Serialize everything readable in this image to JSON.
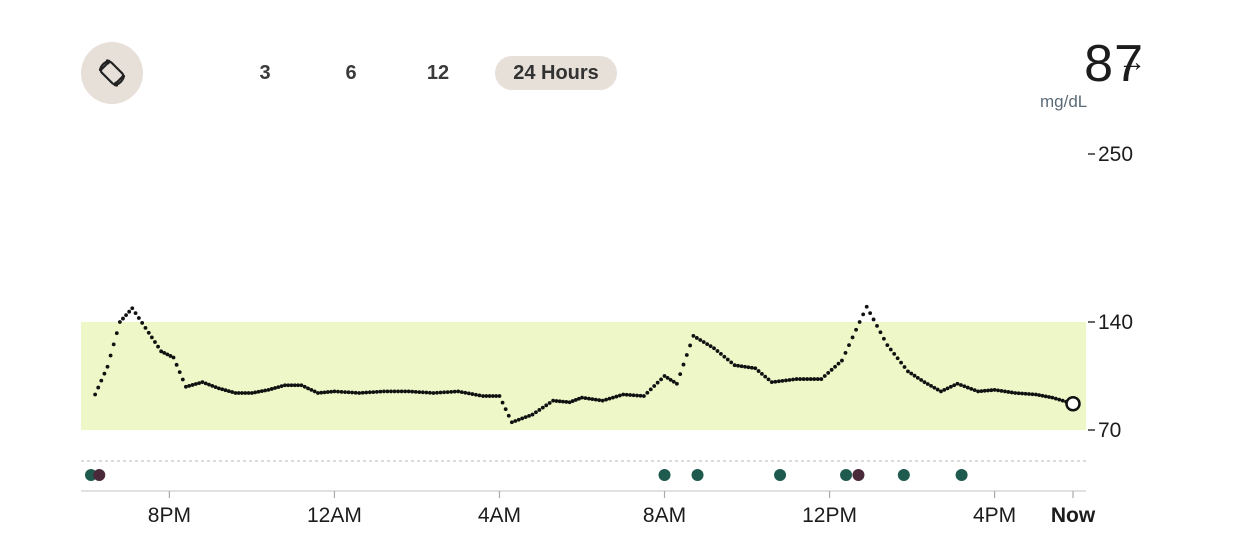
{
  "controls": {
    "rotate_icon": "rotate-screen-icon",
    "ranges": [
      "3",
      "6",
      "12",
      "24 Hours"
    ],
    "active_range": "24 Hours"
  },
  "current": {
    "value": "87",
    "unit": "mg/dL",
    "arrow": "→"
  },
  "colors": {
    "target_band": "#edf7c8",
    "rotate_bg": "#e6e0d8",
    "event_teal": "#1f5a4f",
    "event_purple": "#4a2a3a"
  },
  "chart_data": {
    "type": "scatter",
    "y_ticks": [
      {
        "label": "250",
        "value": 250
      },
      {
        "label": "140",
        "value": 140
      },
      {
        "label": "70",
        "value": 70
      }
    ],
    "target_range": [
      70,
      140
    ],
    "x_ticks": [
      {
        "label": "8PM",
        "hours": 20
      },
      {
        "label": "12AM",
        "hours": 24
      },
      {
        "label": "4AM",
        "hours": 28
      },
      {
        "label": "8AM",
        "hours": 32
      },
      {
        "label": "12PM",
        "hours": 36
      },
      {
        "label": "4PM",
        "hours": 40
      },
      {
        "label": "Now",
        "hours": 41.9
      }
    ],
    "x_range_hours": [
      18.1,
      41.9
    ],
    "y_range": [
      70,
      250
    ],
    "series_points": [
      [
        18.2,
        93
      ],
      [
        18.5,
        111
      ],
      [
        18.8,
        140
      ],
      [
        19.1,
        149
      ],
      [
        19.5,
        133
      ],
      [
        19.8,
        121
      ],
      [
        20.1,
        117
      ],
      [
        20.4,
        98
      ],
      [
        20.8,
        101
      ],
      [
        21.2,
        97
      ],
      [
        21.6,
        94
      ],
      [
        22.0,
        94
      ],
      [
        22.4,
        96
      ],
      [
        22.8,
        99
      ],
      [
        23.2,
        99
      ],
      [
        23.6,
        94
      ],
      [
        24.0,
        95
      ],
      [
        24.6,
        94
      ],
      [
        25.2,
        95
      ],
      [
        25.8,
        95
      ],
      [
        26.4,
        94
      ],
      [
        27.0,
        95
      ],
      [
        27.6,
        92
      ],
      [
        28.0,
        92
      ],
      [
        28.3,
        75
      ],
      [
        28.8,
        80
      ],
      [
        29.3,
        89
      ],
      [
        29.7,
        88
      ],
      [
        30.0,
        91
      ],
      [
        30.5,
        89
      ],
      [
        31.0,
        93
      ],
      [
        31.5,
        92
      ],
      [
        32.0,
        105
      ],
      [
        32.3,
        100
      ],
      [
        32.7,
        131
      ],
      [
        33.2,
        123
      ],
      [
        33.7,
        112
      ],
      [
        34.2,
        110
      ],
      [
        34.6,
        101
      ],
      [
        35.2,
        103
      ],
      [
        35.8,
        103
      ],
      [
        36.3,
        115
      ],
      [
        36.9,
        150
      ],
      [
        37.4,
        125
      ],
      [
        37.9,
        108
      ],
      [
        38.3,
        101
      ],
      [
        38.7,
        95
      ],
      [
        39.1,
        100
      ],
      [
        39.6,
        95
      ],
      [
        40.0,
        96
      ],
      [
        40.5,
        94
      ],
      [
        41.0,
        93
      ],
      [
        41.4,
        91
      ],
      [
        41.9,
        87
      ]
    ],
    "events_teal_hours": [
      18.1,
      32.0,
      32.8,
      34.8,
      36.4,
      37.8,
      39.2
    ],
    "events_purple_hours": [
      18.3,
      36.7
    ]
  }
}
